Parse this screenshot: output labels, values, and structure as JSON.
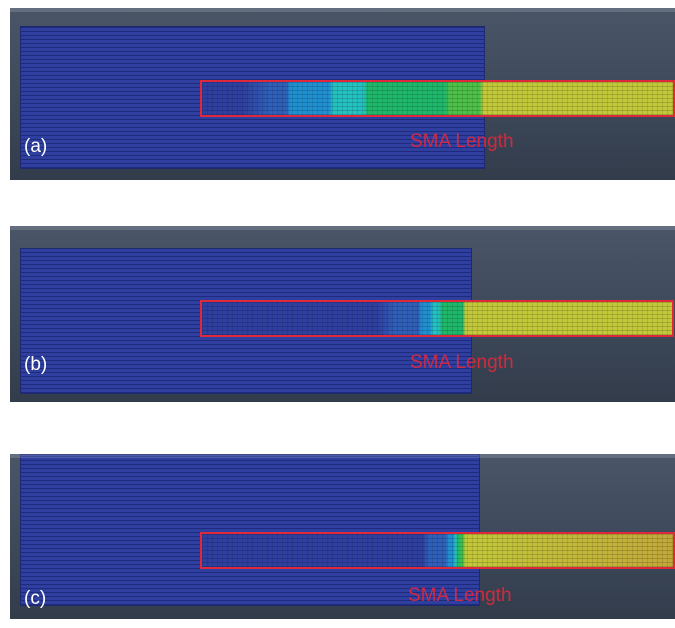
{
  "panels": [
    {
      "id": "a",
      "label": "(a)",
      "annotation": "SMA Length"
    },
    {
      "id": "b",
      "label": "(b)",
      "annotation": "SMA Length"
    },
    {
      "id": "c",
      "label": "(c)",
      "annotation": "SMA Length"
    }
  ],
  "colors": {
    "plate": "#2f3fa0",
    "sma_outline": "#e0283c",
    "background": "#3d4859",
    "contour_scale": [
      "#2f3fa0",
      "#2f5fb8",
      "#1f8fd0",
      "#25c0c0",
      "#1fb86a",
      "#4cc048",
      "#c2c83a"
    ]
  }
}
